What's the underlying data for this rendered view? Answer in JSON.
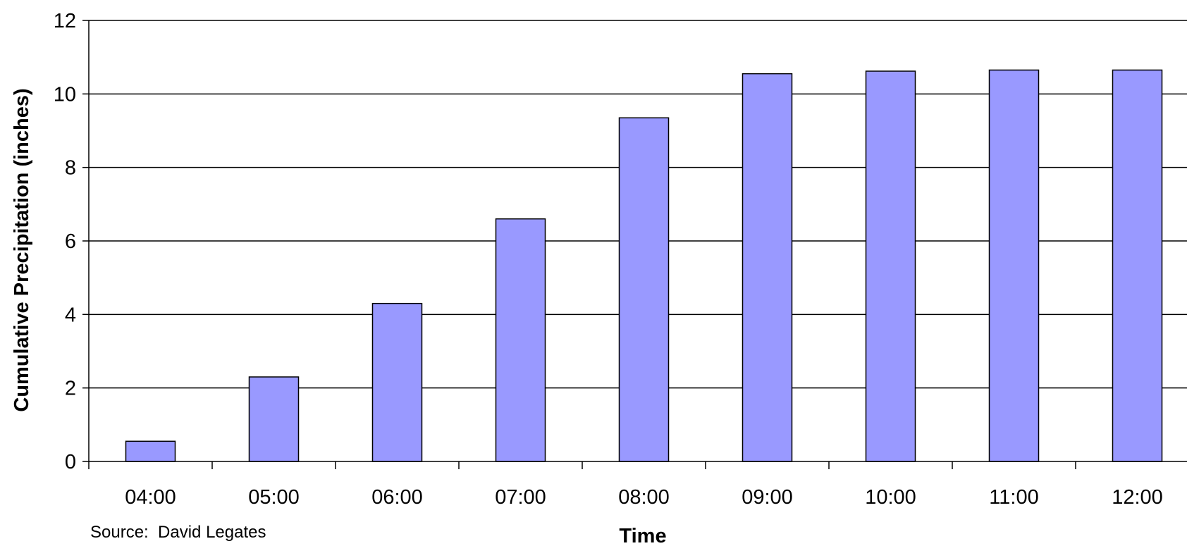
{
  "chart_data": {
    "type": "bar",
    "categories": [
      "04:00",
      "05:00",
      "06:00",
      "07:00",
      "08:00",
      "09:00",
      "10:00",
      "11:00",
      "12:00"
    ],
    "values": [
      0.55,
      2.3,
      4.3,
      6.6,
      9.35,
      10.55,
      10.62,
      10.65,
      10.65
    ],
    "title": "",
    "xlabel": "Time",
    "ylabel": "Cumulative Precipitation (inches)",
    "ylim": [
      0,
      12
    ],
    "yticks": [
      0,
      2,
      4,
      6,
      8,
      10,
      12
    ],
    "grid": true,
    "legend": "none",
    "note": "Source:  David Legates",
    "colors": {
      "bar_fill": "#9999ff",
      "bar_stroke": "#000000",
      "grid": "#000000",
      "background": "#ffffff"
    }
  }
}
